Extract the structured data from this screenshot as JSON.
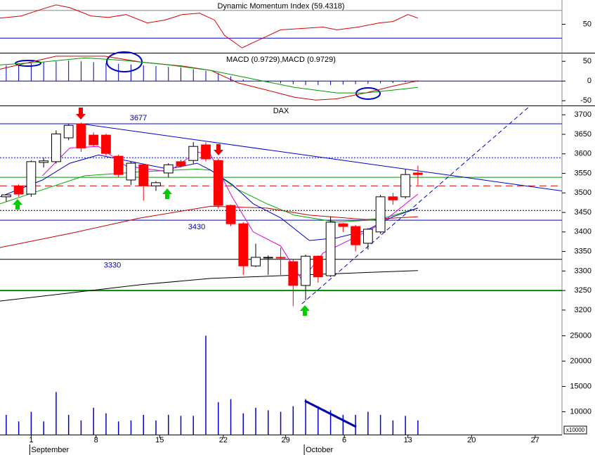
{
  "chart_data": [
    {
      "type": "line",
      "title": "Dynamic Momentum Index (59.4318)",
      "xlim": [
        -0.5,
        44.55
      ],
      "ylim": [
        9,
        84
      ],
      "yticks": [
        50
      ],
      "levels": [
        {
          "value": 70,
          "color": "#888888"
        },
        {
          "value": 30,
          "color": "#0000cc"
        }
      ],
      "series": [
        {
          "color": "#dd0000",
          "x": [
            -0.5,
            1.2,
            2.9,
            4,
            5.1,
            6.8,
            8.2,
            9.6,
            11.3,
            12.7,
            14.1,
            15.5,
            16.7,
            17.5,
            18.9,
            20.3,
            22,
            23.7,
            25.4,
            26.5,
            28.2,
            29.9,
            31,
            32.2,
            33
          ],
          "values": [
            59,
            62,
            72,
            78,
            74,
            62,
            60,
            64,
            52,
            56,
            64,
            66,
            56,
            34,
            16,
            28,
            42,
            44,
            46,
            42,
            46,
            52,
            54,
            64,
            59
          ]
        }
      ]
    },
    {
      "type": "line",
      "title": "MACD (0.9729),MACD (0.9729)",
      "xlim": [
        -0.5,
        44.55
      ],
      "ylim": [
        -62,
        70
      ],
      "yticks": [
        50,
        0,
        -50
      ],
      "levels": [
        {
          "value": 0,
          "color": "#0000cc"
        }
      ],
      "bars": {
        "color": "#0000cc",
        "values": [
          40,
          42,
          45,
          48,
          50,
          52,
          50,
          48,
          46,
          44,
          42,
          40,
          38,
          36,
          34,
          30,
          26,
          20,
          12,
          4,
          0,
          -4,
          -6,
          -8,
          -10,
          -10,
          -10,
          -9,
          -8,
          -7,
          -6,
          -5,
          -3,
          -2
        ]
      },
      "series": [
        {
          "color": "#cc0000",
          "x": [
            -0.5,
            4,
            7.9,
            10.8,
            14.1,
            16.4,
            18.6,
            20.9,
            23.1,
            24.8,
            26.5,
            28.8,
            31,
            33
          ],
          "values": [
            30,
            63,
            63,
            48,
            38,
            27,
            -5,
            -23,
            -41,
            -48,
            -45,
            -30,
            -13,
            1
          ]
        },
        {
          "color": "#009900",
          "x": [
            -0.5,
            2.9,
            6.3,
            9.6,
            13,
            16.4,
            19.8,
            23.1,
            26.5,
            28.8,
            31,
            33
          ],
          "values": [
            41,
            48,
            59,
            52,
            41,
            27,
            5,
            -16,
            -30,
            -30,
            -23,
            -16
          ]
        }
      ]
    },
    {
      "type": "candlestick",
      "title": "DAX",
      "xlim": [
        -0.5,
        44.55
      ],
      "ylim": [
        3162,
        3722
      ],
      "yticks": [
        3200,
        3250,
        3300,
        3350,
        3400,
        3450,
        3500,
        3550,
        3600,
        3650,
        3700
      ],
      "open": [
        3490,
        3518,
        3497,
        3578,
        3580,
        3641,
        3677,
        3648,
        3648,
        3594,
        3533,
        3572,
        3518,
        3551,
        3580,
        3583,
        3623,
        3583,
        3468,
        3421,
        3313,
        3335,
        3335,
        3324,
        3263,
        3338,
        3288,
        3421,
        3414,
        3371,
        3400,
        3490,
        3490,
        3551
      ],
      "high": [
        3497,
        3522,
        3583,
        3590,
        3660,
        3677,
        3680,
        3655,
        3652,
        3598,
        3580,
        3575,
        3530,
        3576,
        3585,
        3630,
        3630,
        3588,
        3470,
        3425,
        3370,
        3340,
        3360,
        3330,
        3342,
        3340,
        3440,
        3423,
        3418,
        3410,
        3495,
        3500,
        3560,
        3570
      ],
      "low": [
        3478,
        3490,
        3490,
        3565,
        3575,
        3635,
        3605,
        3618,
        3595,
        3540,
        3520,
        3480,
        3505,
        3540,
        3565,
        3575,
        3580,
        3460,
        3415,
        3290,
        3310,
        3290,
        3290,
        3210,
        3225,
        3270,
        3285,
        3400,
        3350,
        3355,
        3395,
        3470,
        3485,
        3520
      ],
      "close": [
        3495,
        3497,
        3580,
        3582,
        3651,
        3673,
        3615,
        3623,
        3601,
        3547,
        3576,
        3518,
        3526,
        3572,
        3569,
        3619,
        3587,
        3468,
        3421,
        3313,
        3335,
        3335,
        3333,
        3263,
        3338,
        3285,
        3425,
        3414,
        3367,
        3407,
        3490,
        3482,
        3547,
        3547
      ],
      "up_color": "#ffffff",
      "down_color": "#ff0000",
      "levels": [
        {
          "value": 3677,
          "color": "#0000cc"
        },
        {
          "value": 3590,
          "color": "#0000cc",
          "dash": "2,2"
        },
        {
          "value": 3540,
          "color": "#009900"
        },
        {
          "value": 3518,
          "color": "#dd0000",
          "dash": "10,6"
        },
        {
          "value": 3455,
          "color": "#000000",
          "dash": "2,2"
        },
        {
          "value": 3430,
          "color": "#0000cc"
        },
        {
          "value": 3330,
          "color": "#000000"
        },
        {
          "value": 3250,
          "color": "#008800",
          "width": 2
        }
      ],
      "level_labels": [
        3677,
        3430,
        3330
      ],
      "trendlines": [
        {
          "x": [
            6,
            44.55
          ],
          "values": [
            3677,
            3505
          ],
          "color": "#0000cc"
        },
        {
          "x": [
            23.7,
            42
          ],
          "values": [
            3216,
            3723
          ],
          "color": "#0000cc",
          "dash": "6,4"
        }
      ],
      "series": [
        {
          "color": "#000000",
          "x": [
            -0.5,
            10.8,
            16.4,
            22,
            33
          ],
          "values": [
            3223,
            3265,
            3281,
            3288,
            3301
          ]
        },
        {
          "color": "#cc0000",
          "x": [
            -0.5,
            5.1,
            10.8,
            16.4,
            20.9,
            24.3,
            28.8,
            33
          ],
          "values": [
            3360,
            3396,
            3436,
            3466,
            3461,
            3443,
            3432,
            3439
          ]
        },
        {
          "color": "#00aa00",
          "x": [
            -0.5,
            2.9,
            6.3,
            10.8,
            15.3,
            16.4,
            18.6,
            20.9,
            23.1,
            26.5,
            29.9,
            33
          ],
          "values": [
            3472,
            3508,
            3544,
            3554,
            3561,
            3558,
            3508,
            3472,
            3443,
            3425,
            3432,
            3461
          ]
        },
        {
          "color": "#0000cc",
          "x": [
            -0.5,
            2.9,
            5.1,
            7.4,
            9.6,
            13,
            15.3,
            16.4,
            18.1,
            19.8,
            22,
            24.3,
            26.5,
            28.8,
            31,
            33
          ],
          "values": [
            3490,
            3533,
            3576,
            3597,
            3583,
            3561,
            3576,
            3558,
            3522,
            3472,
            3436,
            3378,
            3385,
            3403,
            3439,
            3461
          ]
        },
        {
          "color": "#dd00dd",
          "x": [
            2.9,
            5.1,
            7.4,
            9.6,
            13,
            15.3,
            16.4,
            18.1,
            19.8,
            22,
            23.7,
            25.4,
            27.7,
            29.9,
            33
          ],
          "values": [
            3544,
            3615,
            3619,
            3569,
            3554,
            3605,
            3597,
            3490,
            3400,
            3364,
            3277,
            3346,
            3382,
            3418,
            3497
          ]
        }
      ]
    },
    {
      "type": "bar",
      "xlim": [
        -0.5,
        44.55
      ],
      "ylim": [
        5500,
        27000
      ],
      "yticks": [
        10000,
        15000,
        20000,
        25000
      ],
      "color": "#0000cc",
      "unit_label": "x10000",
      "values": [
        9400,
        8100,
        10000,
        8100,
        13900,
        9400,
        8300,
        10800,
        9700,
        8100,
        8300,
        9400,
        8300,
        9400,
        9200,
        9200,
        25000,
        11900,
        12500,
        9700,
        10800,
        10300,
        10000,
        11100,
        12500,
        11100,
        10300,
        9400,
        9400,
        10000,
        9400,
        8300,
        9200,
        8300
      ],
      "xticks": [
        {
          "value": 2,
          "label": "1"
        },
        {
          "value": 7.2,
          "label": "8"
        },
        {
          "value": 12.3,
          "label": "15"
        },
        {
          "value": 17.4,
          "label": "22"
        },
        {
          "value": 22.4,
          "label": "29"
        },
        {
          "value": 27.1,
          "label": "6"
        },
        {
          "value": 32.2,
          "label": "13"
        },
        {
          "value": 37.3,
          "label": "20"
        },
        {
          "value": 42.4,
          "label": "27"
        }
      ],
      "period_labels": [
        {
          "value": 2,
          "label": "September"
        },
        {
          "value": 24,
          "label": "October"
        }
      ]
    }
  ]
}
